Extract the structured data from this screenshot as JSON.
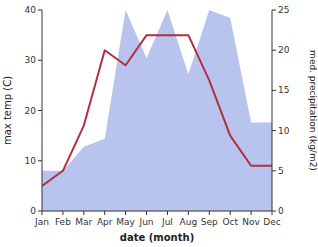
{
  "chart_data": {
    "type": "line",
    "categories": [
      "Jan",
      "Feb",
      "Mar",
      "Apr",
      "May",
      "Jun",
      "Jul",
      "Aug",
      "Sep",
      "Oct",
      "Nov",
      "Dec"
    ],
    "series": [
      {
        "type": "area",
        "color": "#b8c4ee",
        "axis": "y2",
        "values": [
          5,
          5,
          8,
          9,
          25,
          19,
          25,
          17,
          25,
          24,
          11,
          11
        ]
      },
      {
        "type": "line",
        "color": "#b03040",
        "values": [
          5,
          8,
          17,
          32,
          29,
          35,
          35,
          35,
          26,
          15,
          9,
          9
        ]
      }
    ],
    "xlabel": "date (month)",
    "ylabel": "max temp (C)",
    "y2label": "med. precipitation (kg/m2)",
    "ylim": [
      0,
      40
    ],
    "yticks": [
      0,
      10,
      20,
      30,
      40
    ],
    "y2lim": [
      0,
      25
    ],
    "y2ticks": [
      0,
      5,
      10,
      15,
      20,
      25
    ],
    "grid": false
  }
}
